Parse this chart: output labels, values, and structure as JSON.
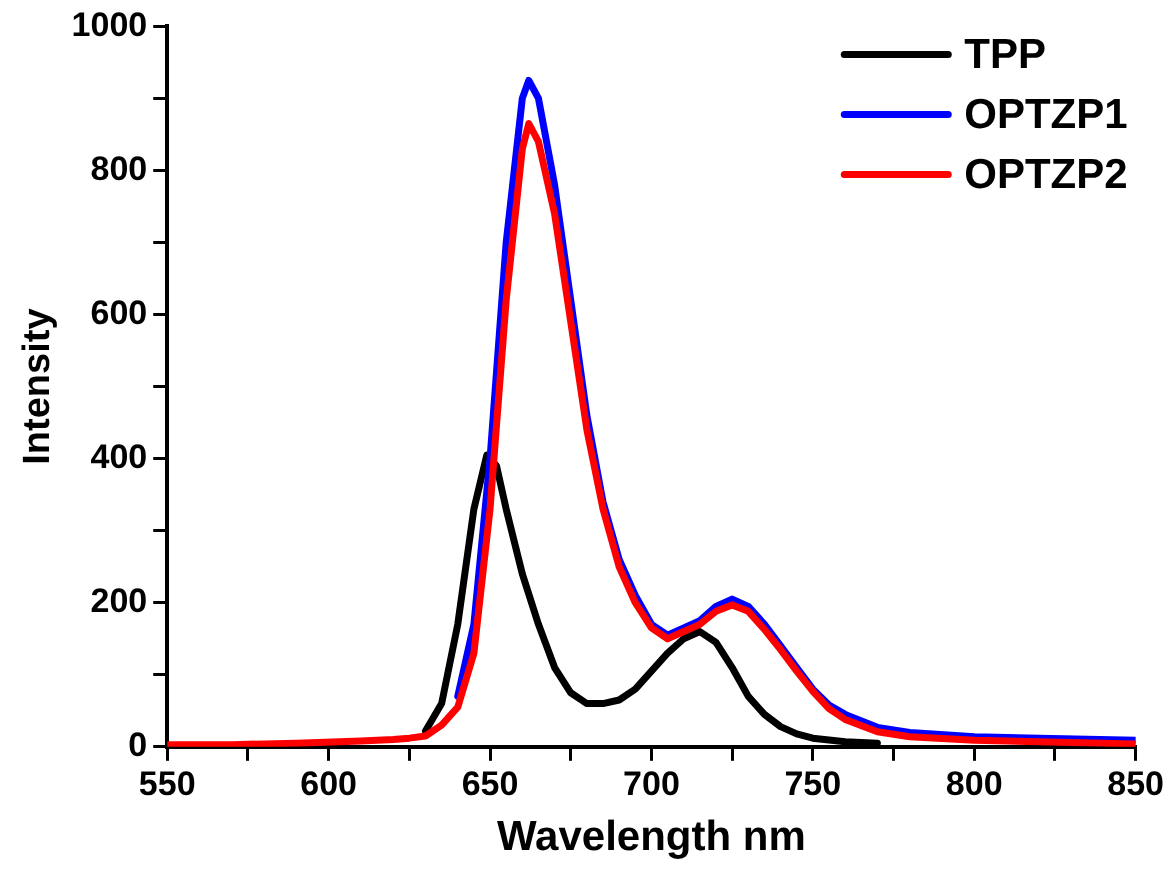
{
  "chart_data": {
    "type": "line",
    "xlabel": "Wavelength nm",
    "ylabel": "Intensity",
    "xlim": [
      550,
      850
    ],
    "ylim": [
      0,
      1000
    ],
    "xticks": [
      550,
      {
        "value": 575,
        "label": null
      },
      600,
      {
        "value": 625,
        "label": null
      },
      650,
      {
        "value": 675,
        "label": null
      },
      700,
      {
        "value": 725,
        "label": null
      },
      750,
      {
        "value": 775,
        "label": null
      },
      800,
      {
        "value": 825,
        "label": null
      },
      850
    ],
    "yticks": [
      0,
      {
        "value": 100,
        "label": null
      },
      200,
      {
        "value": 300,
        "label": null
      },
      400,
      {
        "value": 500,
        "label": null
      },
      600,
      {
        "value": 700,
        "label": null
      },
      800,
      {
        "value": 900,
        "label": null
      },
      1000
    ],
    "grid": false,
    "legend": "top right",
    "marker": "none",
    "line_style": "solid",
    "series": [
      {
        "name": "TPP",
        "color": "#000000",
        "x": [
          630,
          635,
          640,
          645,
          649,
          652,
          655,
          660,
          665,
          670,
          675,
          680,
          685,
          690,
          695,
          700,
          705,
          710,
          715,
          720,
          725,
          730,
          735,
          740,
          745,
          750,
          760,
          770
        ],
        "values": [
          22,
          60,
          170,
          330,
          405,
          390,
          330,
          240,
          170,
          110,
          75,
          60,
          60,
          65,
          80,
          105,
          130,
          150,
          160,
          145,
          110,
          70,
          45,
          28,
          18,
          12,
          7,
          5
        ]
      },
      {
        "name": "OPTZP1",
        "color": "#0000ff",
        "x": [
          640,
          645,
          650,
          655,
          660,
          662,
          665,
          670,
          675,
          680,
          685,
          690,
          695,
          700,
          705,
          710,
          715,
          720,
          725,
          730,
          735,
          740,
          745,
          750,
          755,
          760,
          770,
          780,
          800,
          850
        ],
        "values": [
          70,
          170,
          400,
          700,
          900,
          925,
          900,
          780,
          620,
          460,
          340,
          260,
          210,
          170,
          155,
          165,
          175,
          195,
          205,
          195,
          170,
          140,
          110,
          80,
          58,
          45,
          27,
          20,
          14,
          9
        ]
      },
      {
        "name": "OPTZP2",
        "color": "#ff0000",
        "x": [
          550,
          570,
          590,
          610,
          620,
          625,
          630,
          635,
          640,
          645,
          650,
          655,
          660,
          662,
          665,
          670,
          675,
          680,
          685,
          690,
          695,
          700,
          705,
          710,
          715,
          720,
          725,
          730,
          735,
          740,
          745,
          750,
          755,
          760,
          770,
          780,
          800,
          850
        ],
        "values": [
          3,
          3,
          5,
          8,
          10,
          12,
          15,
          30,
          55,
          130,
          330,
          620,
          830,
          865,
          840,
          740,
          590,
          440,
          330,
          250,
          200,
          165,
          150,
          160,
          170,
          188,
          197,
          188,
          163,
          135,
          105,
          77,
          53,
          38,
          21,
          14,
          9,
          4
        ]
      }
    ]
  }
}
